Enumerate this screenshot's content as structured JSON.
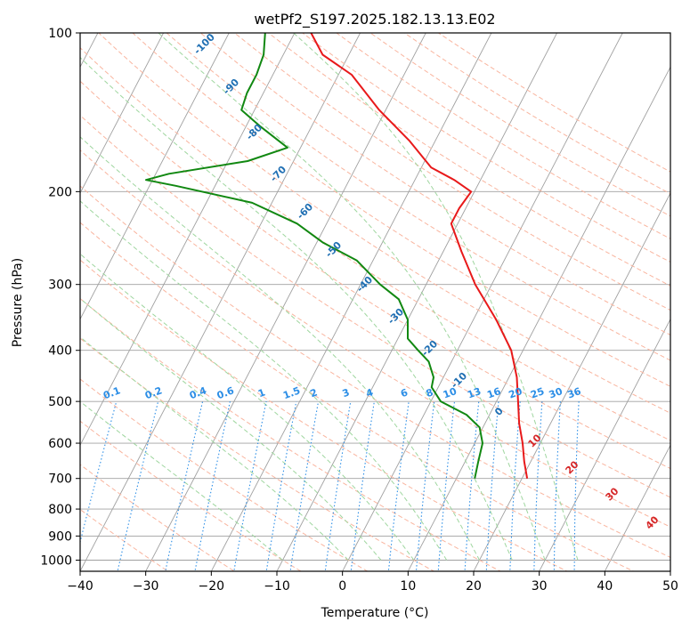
{
  "chart_data": {
    "type": "line",
    "subtype": "skew-t log-p diagram",
    "title": "wetPf2_S197.2025.182.13.13.E02",
    "xlabel": "Temperature (°C)",
    "ylabel": "Pressure (hPa)",
    "xlim": [
      -40,
      50
    ],
    "ylim": [
      1050,
      100
    ],
    "y_scale": "log",
    "grid": true,
    "x_ticks": [
      -40,
      -30,
      -20,
      -10,
      0,
      10,
      20,
      30,
      40,
      50
    ],
    "x_tick_labels": [
      "−40",
      "−30",
      "−20",
      "−10",
      "0",
      "10",
      "20",
      "30",
      "40",
      "50"
    ],
    "y_ticks": [
      100,
      200,
      300,
      400,
      500,
      600,
      700,
      800,
      900,
      1000
    ],
    "y_tick_labels": [
      "100",
      "200",
      "300",
      "400",
      "500",
      "600",
      "700",
      "800",
      "900",
      "1000"
    ],
    "colors": {
      "temperature": "#e8191a",
      "dewpoint": "#118811",
      "isotherm": "#a0a0a0",
      "dry_adiabat": "#f9b59f",
      "moist_adiabat": "#9fd69f",
      "mixing_ratio": "#2c8ee6",
      "isotherm_label": "#1f6fb3",
      "mixing_label": "#2c8ee6",
      "adiabat_label": "#d62728"
    },
    "isotherm_labels": [
      "-100",
      "-90",
      "-80",
      "-70",
      "-60",
      "-50",
      "-40",
      "-30",
      "-20",
      "-10",
      "0"
    ],
    "isotherm_label_values": [
      -100,
      -90,
      -80,
      -70,
      -60,
      -50,
      -40,
      -30,
      -20,
      -10,
      0
    ],
    "mixing_ratio_labels": [
      "0.1",
      "0.2",
      "0.4",
      "0.6",
      "1",
      "1.5",
      "2",
      "3",
      "4",
      "6",
      "8",
      "10",
      "13",
      "16",
      "20",
      "25",
      "30",
      "36"
    ],
    "mixing_ratio_values": [
      0.1,
      0.2,
      0.4,
      0.6,
      1,
      1.5,
      2,
      3,
      4,
      6,
      8,
      10,
      13,
      16,
      20,
      25,
      30,
      36
    ],
    "adiabat_labels": [
      "10",
      "20",
      "30",
      "40"
    ],
    "series": [
      {
        "name": "",
        "role": "temperature",
        "points": [
          {
            "p": 700,
            "t": 20.8
          },
          {
            "p": 650,
            "t": 19.0
          },
          {
            "p": 600,
            "t": 17.3
          },
          {
            "p": 550,
            "t": 15.2
          },
          {
            "p": 500,
            "t": 13.3
          },
          {
            "p": 450,
            "t": 11.2
          },
          {
            "p": 400,
            "t": 8.2
          },
          {
            "p": 350,
            "t": 3.5
          },
          {
            "p": 300,
            "t": -2.5
          },
          {
            "p": 260,
            "t": -7.2
          },
          {
            "p": 230,
            "t": -11.0
          },
          {
            "p": 215,
            "t": -11.0
          },
          {
            "p": 200,
            "t": -10.5
          },
          {
            "p": 190,
            "t": -14.0
          },
          {
            "p": 180,
            "t": -18.5
          },
          {
            "p": 160,
            "t": -24.0
          },
          {
            "p": 140,
            "t": -31.0
          },
          {
            "p": 120,
            "t": -38.0
          },
          {
            "p": 110,
            "t": -44.0
          },
          {
            "p": 100,
            "t": -47.5
          }
        ]
      },
      {
        "name": "",
        "role": "dewpoint",
        "points": [
          {
            "p": 700,
            "t": 12.8
          },
          {
            "p": 650,
            "t": 12.0
          },
          {
            "p": 600,
            "t": 11.2
          },
          {
            "p": 560,
            "t": 9.5
          },
          {
            "p": 530,
            "t": 6.5
          },
          {
            "p": 500,
            "t": 1.5
          },
          {
            "p": 470,
            "t": -1.0
          },
          {
            "p": 450,
            "t": -1.5
          },
          {
            "p": 420,
            "t": -3.5
          },
          {
            "p": 400,
            "t": -6.0
          },
          {
            "p": 380,
            "t": -8.5
          },
          {
            "p": 350,
            "t": -10.0
          },
          {
            "p": 320,
            "t": -13.0
          },
          {
            "p": 300,
            "t": -17.0
          },
          {
            "p": 270,
            "t": -22.5
          },
          {
            "p": 250,
            "t": -29.0
          },
          {
            "p": 230,
            "t": -34.5
          },
          {
            "p": 210,
            "t": -43.0
          },
          {
            "p": 195,
            "t": -56.0
          },
          {
            "p": 190,
            "t": -61.0
          },
          {
            "p": 185,
            "t": -58.0
          },
          {
            "p": 175,
            "t": -47.0
          },
          {
            "p": 165,
            "t": -42.0
          },
          {
            "p": 150,
            "t": -48.0
          },
          {
            "p": 140,
            "t": -52.0
          },
          {
            "p": 130,
            "t": -52.5
          },
          {
            "p": 120,
            "t": -52.5
          },
          {
            "p": 110,
            "t": -53.0
          },
          {
            "p": 100,
            "t": -54.5
          }
        ]
      }
    ]
  }
}
